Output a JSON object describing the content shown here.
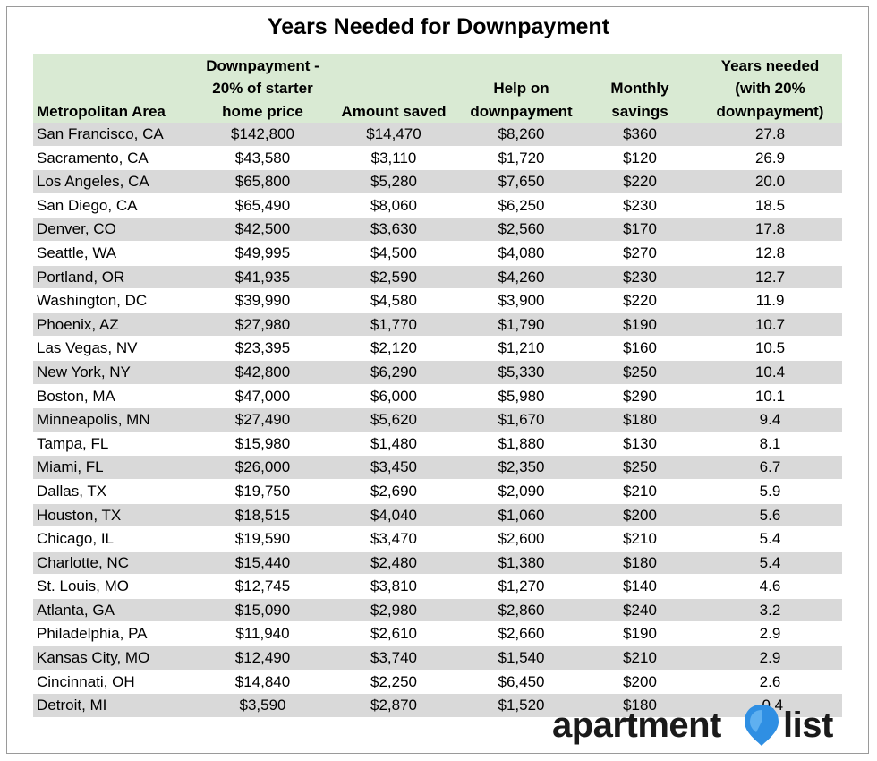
{
  "chart_data": {
    "type": "table",
    "title": "Years Needed for Downpayment",
    "columns": [
      "Metropolitan Area",
      "Downpayment - 20% of starter home price",
      "Amount saved",
      "Help on downpayment",
      "Monthly savings",
      "Years needed (with 20% downpayment)"
    ],
    "header_lines": [
      [
        "Metropolitan Area"
      ],
      [
        "Downpayment -",
        "20% of starter",
        "home price"
      ],
      [
        "Amount saved"
      ],
      [
        "Help on",
        "downpayment"
      ],
      [
        "Monthly",
        "savings"
      ],
      [
        "Years needed",
        "(with 20%",
        "downpayment)"
      ]
    ],
    "rows": [
      [
        "San Francisco, CA",
        "$142,800",
        "$14,470",
        "$8,260",
        "$360",
        "27.8"
      ],
      [
        "Sacramento, CA",
        "$43,580",
        "$3,110",
        "$1,720",
        "$120",
        "26.9"
      ],
      [
        "Los Angeles, CA",
        "$65,800",
        "$5,280",
        "$7,650",
        "$220",
        "20.0"
      ],
      [
        "San Diego, CA",
        "$65,490",
        "$8,060",
        "$6,250",
        "$230",
        "18.5"
      ],
      [
        "Denver, CO",
        "$42,500",
        "$3,630",
        "$2,560",
        "$170",
        "17.8"
      ],
      [
        "Seattle, WA",
        "$49,995",
        "$4,500",
        "$4,080",
        "$270",
        "12.8"
      ],
      [
        "Portland, OR",
        "$41,935",
        "$2,590",
        "$4,260",
        "$230",
        "12.7"
      ],
      [
        "Washington, DC",
        "$39,990",
        "$4,580",
        "$3,900",
        "$220",
        "11.9"
      ],
      [
        "Phoenix, AZ",
        "$27,980",
        "$1,770",
        "$1,790",
        "$190",
        "10.7"
      ],
      [
        "Las Vegas, NV",
        "$23,395",
        "$2,120",
        "$1,210",
        "$160",
        "10.5"
      ],
      [
        "New York, NY",
        "$42,800",
        "$6,290",
        "$5,330",
        "$250",
        "10.4"
      ],
      [
        "Boston, MA",
        "$47,000",
        "$6,000",
        "$5,980",
        "$290",
        "10.1"
      ],
      [
        "Minneapolis, MN",
        "$27,490",
        "$5,620",
        "$1,670",
        "$180",
        "9.4"
      ],
      [
        "Tampa, FL",
        "$15,980",
        "$1,480",
        "$1,880",
        "$130",
        "8.1"
      ],
      [
        "Miami, FL",
        "$26,000",
        "$3,450",
        "$2,350",
        "$250",
        "6.7"
      ],
      [
        "Dallas, TX",
        "$19,750",
        "$2,690",
        "$2,090",
        "$210",
        "5.9"
      ],
      [
        "Houston, TX",
        "$18,515",
        "$4,040",
        "$1,060",
        "$200",
        "5.6"
      ],
      [
        "Chicago, IL",
        "$19,590",
        "$3,470",
        "$2,600",
        "$210",
        "5.4"
      ],
      [
        "Charlotte, NC",
        "$15,440",
        "$2,480",
        "$1,380",
        "$180",
        "5.4"
      ],
      [
        "St. Louis, MO",
        "$12,745",
        "$3,810",
        "$1,270",
        "$140",
        "4.6"
      ],
      [
        "Atlanta, GA",
        "$15,090",
        "$2,980",
        "$2,860",
        "$240",
        "3.2"
      ],
      [
        "Philadelphia, PA",
        "$11,940",
        "$2,610",
        "$2,660",
        "$190",
        "2.9"
      ],
      [
        "Kansas City, MO",
        "$12,490",
        "$3,740",
        "$1,540",
        "$210",
        "2.9"
      ],
      [
        "Cincinnati, OH",
        "$14,840",
        "$2,250",
        "$6,450",
        "$200",
        "2.6"
      ],
      [
        "Detroit, MI",
        "$3,590",
        "$2,870",
        "$1,520",
        "$180",
        "-0.4"
      ]
    ],
    "colors": {
      "header_fill": "#d9ead3",
      "shaded_row_fill": "#d9d9d9",
      "border": "#9a9a9a"
    }
  },
  "logo": {
    "text_left": "apartment",
    "text_right": "list",
    "icon": "map-pin-icon",
    "colors": {
      "pin": "#2f8fe3",
      "text": "#1a1a1a"
    }
  }
}
